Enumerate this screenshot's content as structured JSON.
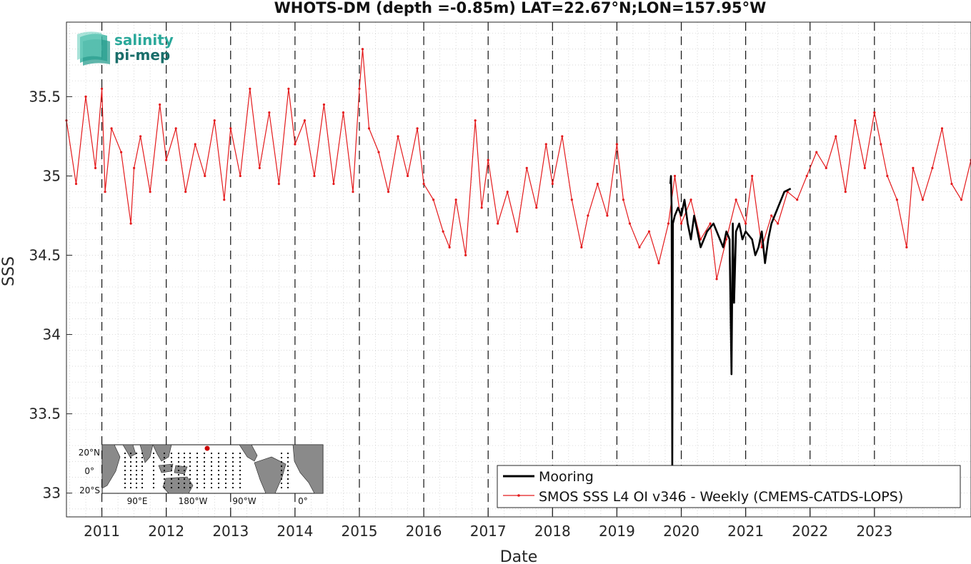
{
  "chart_data": {
    "type": "line",
    "title": "WHOTS-DM (depth =-0.85m) LAT=22.67°N;LON=157.95°W",
    "xlabel": "Date",
    "ylabel": "SSS",
    "xlim": [
      2010.45,
      2024.5
    ],
    "ylim": [
      32.85,
      35.97
    ],
    "x_tick_labels": [
      "2011",
      "2012",
      "2013",
      "2014",
      "2015",
      "2016",
      "2017",
      "2018",
      "2019",
      "2020",
      "2021",
      "2022",
      "2023"
    ],
    "x_tick_values": [
      2011,
      2012,
      2013,
      2014,
      2015,
      2016,
      2017,
      2018,
      2019,
      2020,
      2021,
      2022,
      2023
    ],
    "y_tick_labels": [
      "33",
      "33.5",
      "34",
      "34.5",
      "35",
      "35.5"
    ],
    "y_tick_values": [
      33,
      33.5,
      34,
      34.5,
      35,
      35.5
    ],
    "grid": true,
    "legend_position": "bottom-right",
    "series": [
      {
        "name": "SMOS SSS L4 OI v346 - Weekly (CMEMS-CATDS-LOPS)",
        "color": "#e41a1c",
        "marker": "dot",
        "x": [
          2010.45,
          2010.6,
          2010.75,
          2010.9,
          2011.0,
          2011.05,
          2011.15,
          2011.3,
          2011.45,
          2011.5,
          2011.6,
          2011.75,
          2011.9,
          2012.0,
          2012.15,
          2012.3,
          2012.45,
          2012.6,
          2012.75,
          2012.9,
          2013.0,
          2013.15,
          2013.3,
          2013.45,
          2013.6,
          2013.75,
          2013.9,
          2014.0,
          2014.15,
          2014.3,
          2014.45,
          2014.6,
          2014.75,
          2014.9,
          2015.0,
          2015.05,
          2015.15,
          2015.3,
          2015.45,
          2015.6,
          2015.75,
          2015.9,
          2016.0,
          2016.15,
          2016.3,
          2016.4,
          2016.5,
          2016.65,
          2016.8,
          2016.9,
          2017.0,
          2017.15,
          2017.3,
          2017.45,
          2017.6,
          2017.75,
          2017.9,
          2018.0,
          2018.15,
          2018.3,
          2018.45,
          2018.55,
          2018.7,
          2018.85,
          2019.0,
          2019.1,
          2019.2,
          2019.35,
          2019.5,
          2019.65,
          2019.8,
          2019.9,
          2020.0,
          2020.15,
          2020.3,
          2020.45,
          2020.55,
          2020.7,
          2020.85,
          2021.0,
          2021.1,
          2021.25,
          2021.4,
          2021.5,
          2021.65,
          2021.8,
          2021.95,
          2022.1,
          2022.25,
          2022.4,
          2022.55,
          2022.7,
          2022.85,
          2023.0,
          2023.1,
          2023.2,
          2023.35,
          2023.5,
          2023.6,
          2023.75,
          2023.9,
          2024.05,
          2024.2,
          2024.35,
          2024.5
        ],
        "y": [
          35.35,
          34.95,
          35.5,
          35.05,
          35.55,
          34.9,
          35.3,
          35.15,
          34.7,
          35.05,
          35.25,
          34.9,
          35.45,
          35.1,
          35.3,
          34.9,
          35.2,
          35.0,
          35.35,
          34.85,
          35.3,
          35.0,
          35.55,
          35.05,
          35.4,
          34.95,
          35.55,
          35.2,
          35.35,
          35.0,
          35.45,
          34.95,
          35.4,
          34.9,
          35.55,
          35.8,
          35.3,
          35.15,
          34.9,
          35.25,
          35.0,
          35.3,
          34.95,
          34.85,
          34.65,
          34.55,
          34.85,
          34.5,
          35.35,
          34.8,
          35.1,
          34.7,
          34.9,
          34.65,
          35.05,
          34.8,
          35.2,
          34.95,
          35.25,
          34.85,
          34.55,
          34.75,
          34.95,
          34.75,
          35.2,
          34.85,
          34.7,
          34.55,
          34.65,
          34.45,
          34.7,
          35.0,
          34.7,
          34.85,
          34.6,
          34.7,
          34.35,
          34.6,
          34.85,
          34.7,
          35.0,
          34.55,
          34.75,
          34.7,
          34.9,
          34.85,
          35.0,
          35.15,
          35.05,
          35.25,
          34.9,
          35.35,
          35.05,
          35.4,
          35.2,
          35.0,
          34.85,
          34.55,
          35.05,
          34.85,
          35.05,
          35.3,
          34.95,
          34.85,
          35.1
        ]
      },
      {
        "name": "Mooring",
        "color": "#000000",
        "x": [
          2019.83,
          2019.84,
          2019.85,
          2019.86,
          2019.87,
          2019.9,
          2019.95,
          2020.0,
          2020.05,
          2020.1,
          2020.15,
          2020.2,
          2020.3,
          2020.4,
          2020.5,
          2020.6,
          2020.65,
          2020.7,
          2020.75,
          2020.78,
          2020.8,
          2020.82,
          2020.85,
          2020.9,
          2020.95,
          2021.0,
          2021.1,
          2021.15,
          2021.2,
          2021.25,
          2021.3,
          2021.35,
          2021.4,
          2021.5,
          2021.6,
          2021.7
        ],
        "y": [
          34.95,
          35.0,
          34.8,
          33.15,
          34.7,
          34.75,
          34.8,
          34.75,
          34.85,
          34.7,
          34.6,
          34.75,
          34.55,
          34.65,
          34.7,
          34.6,
          34.55,
          34.65,
          34.6,
          33.75,
          34.7,
          34.2,
          34.65,
          34.7,
          34.6,
          34.65,
          34.6,
          34.5,
          34.55,
          34.65,
          34.45,
          34.6,
          34.7,
          34.8,
          34.9,
          34.92
        ]
      }
    ]
  },
  "legend": {
    "items": [
      {
        "label": "Mooring",
        "color": "#000000"
      },
      {
        "label": "SMOS SSS L4 OI v346 - Weekly (CMEMS-CATDS-LOPS)",
        "color": "#e41a1c"
      }
    ]
  },
  "logo": {
    "line1": "salinity",
    "line2": "pi-mep",
    "color1": "#2aa89a",
    "color2": "#1a6e6a"
  },
  "inset_map": {
    "lat_labels": [
      "20°N",
      "0°",
      "20°S"
    ],
    "lon_labels": [
      "90°E",
      "180°W",
      "90°W",
      "0°"
    ],
    "land_color": "#8a8a8a",
    "marker_color": "#cc0000"
  }
}
